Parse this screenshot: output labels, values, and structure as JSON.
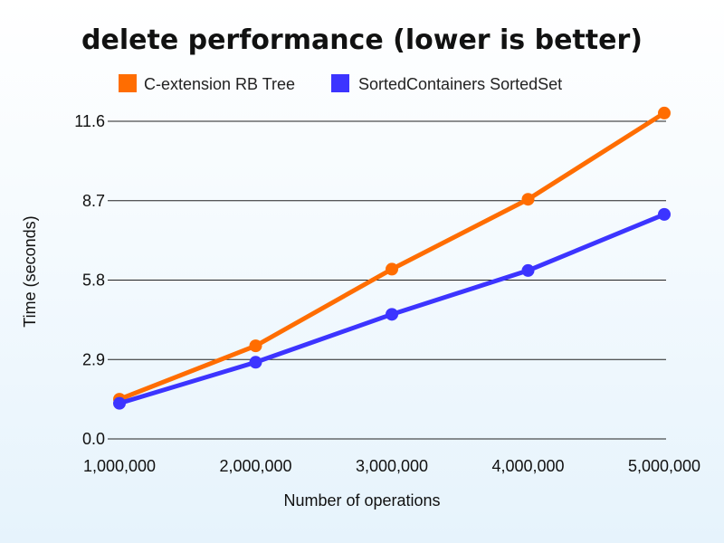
{
  "chart_data": {
    "type": "line",
    "title": "delete performance (lower is better)",
    "xlabel": "Number of operations",
    "ylabel": "Time (seconds)",
    "x": [
      1000000,
      2000000,
      3000000,
      4000000,
      5000000
    ],
    "x_tick_labels": [
      "1,000,000",
      "2,000,000",
      "3,000,000",
      "4,000,000",
      "5,000,000"
    ],
    "y_ticks": [
      0,
      2.9,
      5.8,
      8.7,
      11.6
    ],
    "y_tick_labels": [
      "0.0",
      "2.9",
      "5.8",
      "8.7",
      "11.6"
    ],
    "ylim": [
      0,
      11.6
    ],
    "grid": "horizontal",
    "legend_position": "top",
    "series": [
      {
        "name": "C-extension RB Tree",
        "color": "#ff6d01",
        "values": [
          1.45,
          3.4,
          6.2,
          8.75,
          11.9
        ]
      },
      {
        "name": "SortedContainers SortedSet",
        "color": "#3c34ff",
        "values": [
          1.3,
          2.8,
          4.55,
          6.15,
          8.2
        ]
      }
    ]
  }
}
